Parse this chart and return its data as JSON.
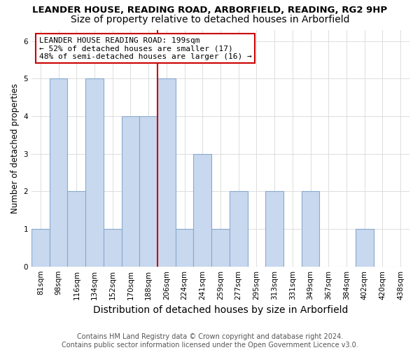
{
  "title": "LEANDER HOUSE, READING ROAD, ARBORFIELD, READING, RG2 9HP",
  "subtitle": "Size of property relative to detached houses in Arborfield",
  "xlabel": "Distribution of detached houses by size in Arborfield",
  "ylabel": "Number of detached properties",
  "categories": [
    "81sqm",
    "98sqm",
    "116sqm",
    "134sqm",
    "152sqm",
    "170sqm",
    "188sqm",
    "206sqm",
    "224sqm",
    "241sqm",
    "259sqm",
    "277sqm",
    "295sqm",
    "313sqm",
    "331sqm",
    "349sqm",
    "367sqm",
    "384sqm",
    "402sqm",
    "420sqm",
    "438sqm"
  ],
  "values": [
    1,
    5,
    2,
    5,
    1,
    4,
    4,
    5,
    1,
    3,
    1,
    2,
    0,
    2,
    0,
    2,
    0,
    0,
    1,
    0,
    0
  ],
  "bar_color": "#C8D8EE",
  "bar_edge_color": "#88AACC",
  "red_line_x": 7,
  "red_line_color": "#CC0000",
  "marker_label_line1": "LEANDER HOUSE READING ROAD: 199sqm",
  "marker_label_line2": "← 52% of detached houses are smaller (17)",
  "marker_label_line3": "48% of semi-detached houses are larger (16) →",
  "ylim": [
    0,
    6.3
  ],
  "yticks": [
    0,
    1,
    2,
    3,
    4,
    5,
    6
  ],
  "grid_color": "#DDDDDD",
  "annotation_box_edge": "#CC0000",
  "footer": "Contains HM Land Registry data © Crown copyright and database right 2024.\nContains public sector information licensed under the Open Government Licence v3.0.",
  "title_fontsize": 9.5,
  "subtitle_fontsize": 10,
  "xlabel_fontsize": 10,
  "ylabel_fontsize": 8.5,
  "tick_fontsize": 7.5,
  "annot_fontsize": 8,
  "footer_fontsize": 7
}
